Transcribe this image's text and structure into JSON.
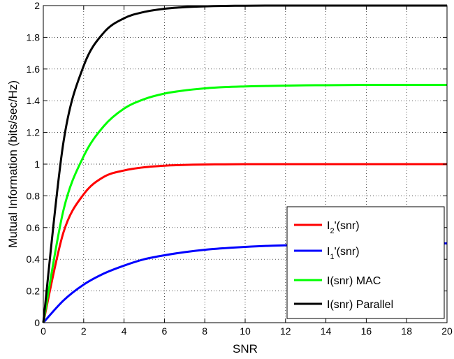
{
  "chart_data": {
    "type": "line",
    "title": "",
    "xlabel": "SNR",
    "ylabel": "Mutual Information (bits/sec/Hz)",
    "xlim": [
      0,
      20
    ],
    "ylim": [
      0,
      2
    ],
    "xticks": [
      0,
      2,
      4,
      6,
      8,
      10,
      12,
      14,
      16,
      18,
      20
    ],
    "yticks": [
      0,
      0.2,
      0.4,
      0.6,
      0.8,
      1,
      1.2,
      1.4,
      1.6,
      1.8,
      2
    ],
    "grid": true,
    "legend_position": "bottom-right",
    "x": [
      0,
      1,
      2,
      3,
      4,
      5,
      6,
      7,
      8,
      9,
      10,
      11,
      12,
      13,
      14,
      15,
      16,
      17,
      18,
      19,
      20
    ],
    "series": [
      {
        "name": "I_2'(snr)",
        "legend": {
          "main": "I",
          "sub": "2",
          "rest": "'(snr)"
        },
        "color": "#ff0000",
        "values": [
          0,
          0.57,
          0.81,
          0.92,
          0.96,
          0.98,
          0.99,
          0.995,
          0.998,
          0.999,
          1.0,
          1.0,
          1.0,
          1.0,
          1.0,
          1.0,
          1.0,
          1.0,
          1.0,
          1.0,
          1.0
        ]
      },
      {
        "name": "I_1'(snr)",
        "legend": {
          "main": "I",
          "sub": "1",
          "rest": "'(snr)"
        },
        "color": "#0000ff",
        "values": [
          0,
          0.14,
          0.24,
          0.31,
          0.36,
          0.4,
          0.425,
          0.445,
          0.46,
          0.47,
          0.478,
          0.484,
          0.488,
          0.491,
          0.494,
          0.496,
          0.497,
          0.498,
          0.499,
          0.5,
          0.5
        ]
      },
      {
        "name": "I(snr) MAC",
        "legend": {
          "main": "I(snr) MAC",
          "sub": "",
          "rest": ""
        },
        "color": "#00ff00",
        "values": [
          0,
          0.71,
          1.05,
          1.24,
          1.35,
          1.41,
          1.445,
          1.465,
          1.478,
          1.486,
          1.49,
          1.493,
          1.495,
          1.497,
          1.498,
          1.499,
          1.5,
          1.5,
          1.5,
          1.5,
          1.5
        ]
      },
      {
        "name": "I(snr) Parallel",
        "legend": {
          "main": "I(snr) Parallel",
          "sub": "",
          "rest": ""
        },
        "color": "#000000",
        "values": [
          0,
          1.14,
          1.62,
          1.83,
          1.92,
          1.96,
          1.98,
          1.99,
          1.995,
          1.998,
          1.999,
          2.0,
          2.0,
          2.0,
          2.0,
          2.0,
          2.0,
          2.0,
          2.0,
          2.0,
          2.0
        ]
      }
    ]
  }
}
